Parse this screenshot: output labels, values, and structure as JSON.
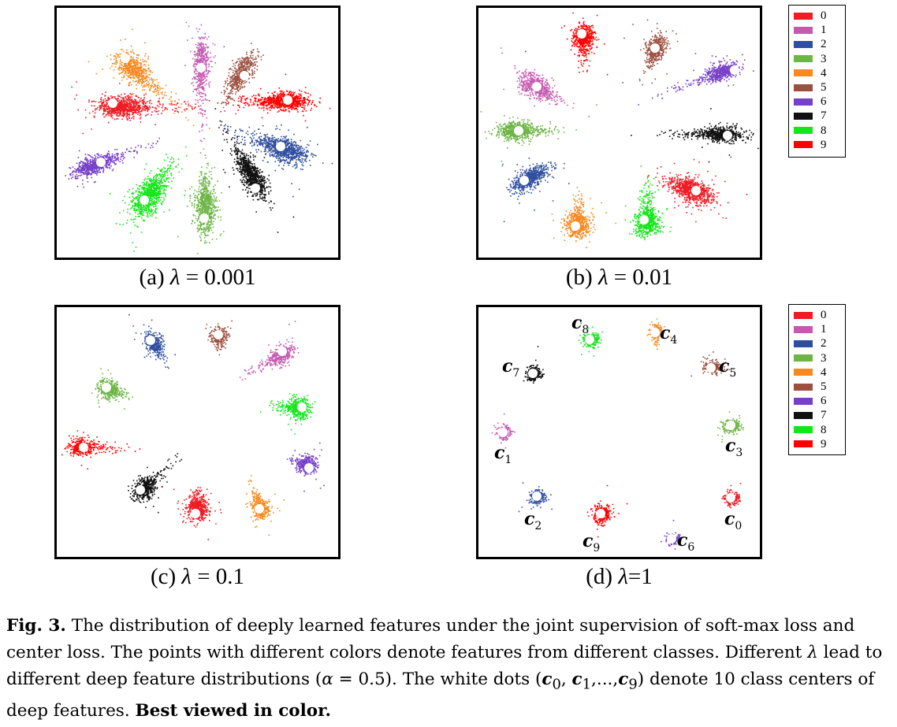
{
  "colors": [
    "#ee1c24",
    "#c45ab0",
    "#2f4e9f",
    "#6db546",
    "#f6891f",
    "#9c5040",
    "#7640c8",
    "#111111",
    "#13e619",
    "#ff0000"
  ],
  "panels": [
    {
      "caption_prefix": "(a)",
      "caption_lambda": "λ",
      "caption_rest": " = 0.001"
    },
    {
      "caption_prefix": "(b)",
      "caption_lambda": "λ",
      "caption_rest": " = 0.01"
    },
    {
      "caption_prefix": "(c)",
      "caption_lambda": "λ",
      "caption_rest": " = 0.1"
    },
    {
      "caption_prefix": "(d)",
      "caption_lambda": "λ",
      "caption_rest": "=1"
    }
  ],
  "legend": {
    "labels": [
      "0",
      "1",
      "2",
      "3",
      "4",
      "5",
      "6",
      "7",
      "8",
      "9"
    ]
  },
  "center_labels": {
    "prefix": "c",
    "subs": [
      "0",
      "1",
      "2",
      "3",
      "4",
      "5",
      "6",
      "7",
      "8",
      "9"
    ]
  },
  "figure_caption": {
    "label": "Fig. 3.",
    "text1": " The distribution of deeply learned features under the joint supervision of soft-max loss and center loss. The points with different colors denote features from different classes. Different ",
    "lambda": "λ",
    "text2": " lead to different deep feature distributions (",
    "alpha": "α",
    "text3": " = 0.5). The white dots (",
    "c0": "c",
    "s0": "0",
    "comma1": ", ",
    "c1": "c",
    "s1": "1",
    "dots": ",...,",
    "c9": "c",
    "s9": "9",
    "text4": ") denote 10 class centers of deep features. ",
    "bold_end": "Best viewed in color."
  }
}
